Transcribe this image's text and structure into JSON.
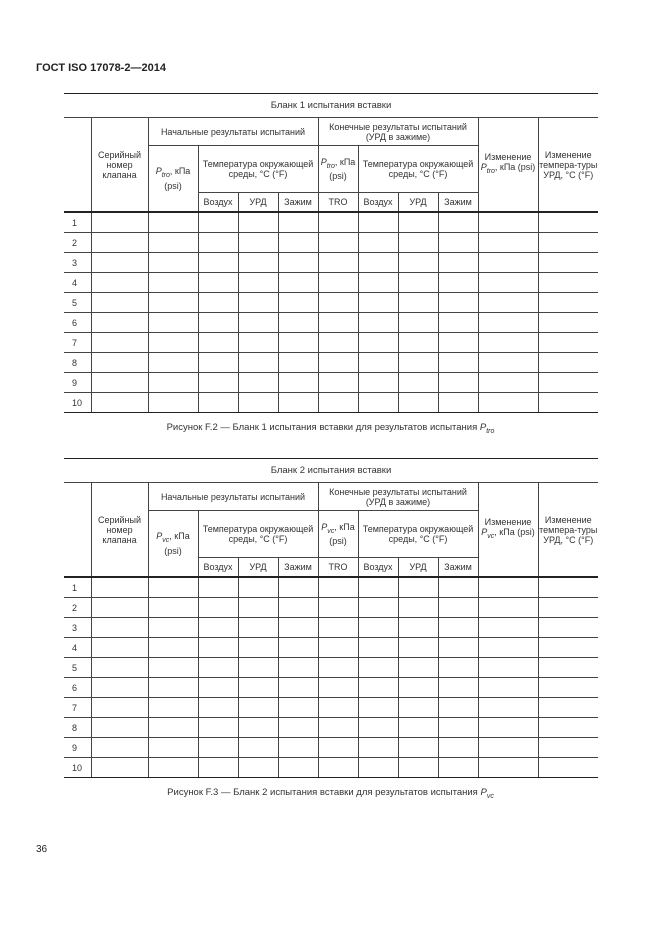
{
  "header": "ГОСТ ISO 17078-2—2014",
  "page_number": "36",
  "tables": [
    {
      "title": "Бланк 1 испытания вставки",
      "sub": "tro",
      "serial": "Серийный номер клапана",
      "initial": "Начальные результаты испытаний",
      "final": "Конечные результаты испытаний (УРД в зажиме)",
      "p_init_unit": ", кПа (psi)",
      "temp_init": "Температура окружающей среды, °С (°F)",
      "p_final_unit": ", кПа (psi)",
      "temp_final": "Температура окружающей среды, °С (°F)",
      "change_p_label": "Изменение",
      "change_p_unit": ", кПа (psi)",
      "change_t": "Изменение темпера-туры УРД, °С (°F)",
      "cols": [
        "Воздух",
        "УРД",
        "Зажим",
        "TRO",
        "Воздух",
        "УРД",
        "Зажим"
      ],
      "rows": [
        "1",
        "2",
        "3",
        "4",
        "5",
        "6",
        "7",
        "8",
        "9",
        "10"
      ],
      "caption": "Рисунок F.2 — Бланк 1 испытания вставки для результатов испытания "
    },
    {
      "title": "Бланк 2 испытания вставки",
      "sub": "vc",
      "serial": "Серийный номер клапана",
      "initial": "Начальные результаты испытаний",
      "final": "Конечные результаты испытаний (УРД в зажиме)",
      "p_init_unit": ", кПа (psi)",
      "temp_init": "Температура окружающей среды, °С (°F)",
      "p_final_unit": ", кПа (psi)",
      "temp_final": "Температура окружающей среды, °С (°F)",
      "change_p_label": "Изменение",
      "change_p_unit": ", кПа (psi)",
      "change_t": "Изменение темпера-туры УРД, °С (°F)",
      "cols": [
        "Воздух",
        "УРД",
        "Зажим",
        "TRO",
        "Воздух",
        "УРД",
        "Зажим"
      ],
      "rows": [
        "1",
        "2",
        "3",
        "4",
        "5",
        "6",
        "7",
        "8",
        "9",
        "10"
      ],
      "caption": "Рисунок F.3 — Бланк 2 испытания вставки для результатов испытания "
    }
  ]
}
